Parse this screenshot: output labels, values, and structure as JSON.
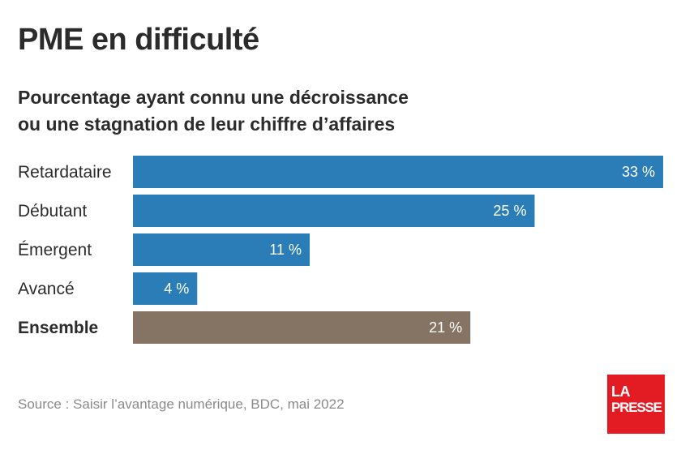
{
  "title": "PME en difficulté",
  "subtitle_lines": [
    "Pourcentage ayant connu une décroissance",
    "ou une stagnation de leur chiffre d’affaires"
  ],
  "chart_data": {
    "type": "bar",
    "orientation": "horizontal",
    "categories": [
      "Retardataire",
      "Débutant",
      "Émergent",
      "Avancé",
      "Ensemble"
    ],
    "values": [
      33,
      25,
      11,
      4,
      21
    ],
    "value_labels": [
      "33 %",
      "25 %",
      "11 %",
      "4 %",
      "21 %"
    ],
    "bold_categories": [
      "Ensemble"
    ],
    "colors": [
      "#2a7db7",
      "#2a7db7",
      "#2a7db7",
      "#2a7db7",
      "#857463"
    ],
    "title": "PME en difficulté",
    "xlabel": "",
    "ylabel": "",
    "xlim": [
      0,
      33
    ],
    "grid": false,
    "legend": "none"
  },
  "source": "Source : Saisir l’avantage numérique, BDC, mai 2022",
  "logo": {
    "line1": "LA",
    "line2": "PRESSE",
    "color": "#e31b23"
  }
}
